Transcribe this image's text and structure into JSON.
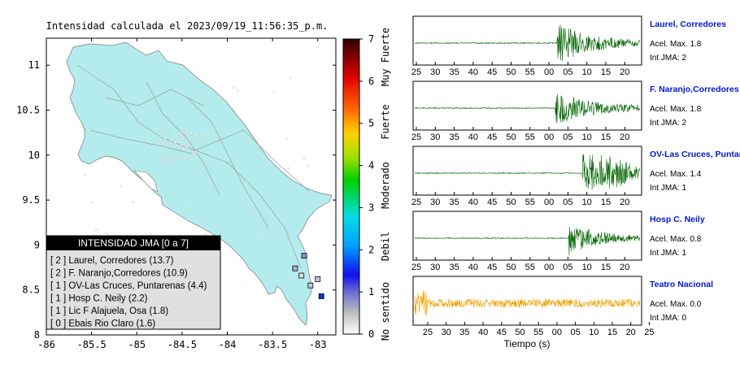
{
  "map": {
    "title": "Intensidad calculada el 2023/09/19_11:56:35_p.m.",
    "x_ticks": [
      "-86",
      "-85.5",
      "-85",
      "-84.5",
      "-84",
      "-83.5",
      "-83"
    ],
    "y_ticks": [
      "11",
      "10.5",
      "10",
      "9.5",
      "9",
      "8.5",
      "8"
    ],
    "xlim": [
      -86,
      -82.8
    ],
    "ylim": [
      8,
      11.3
    ]
  },
  "colorbar": {
    "ticks": [
      "0",
      "1",
      "2",
      "3",
      "4",
      "5",
      "6",
      "7"
    ],
    "labels": [
      "No sentido",
      "Debil",
      "Moderado",
      "Fuerte",
      "Muy Fuerte"
    ],
    "range": [
      0,
      7
    ]
  },
  "legend": {
    "title": "INTENSIDAD JMA [0 a 7]",
    "entries": [
      "[ 2 ]  Laurel, Corredores (13.7)",
      "[ 2 ]  F. Naranjo,Corredores (10.9)",
      "[ 1 ]  OV-Las Cruces, Puntarenas (4.4)",
      "[ 1 ]  Hosp C. Neily (2.2)",
      "[ 1 ]  Lic F Alajuela, Osa (1.8)",
      "[ 0 ]  Ebais Rio Claro (1.6)"
    ]
  },
  "stations": [
    {
      "lon": -82.96,
      "lat": 8.43,
      "intensity": 2,
      "color": "#1a2fc4"
    },
    {
      "lon": -83.08,
      "lat": 8.55,
      "intensity": 2,
      "color": "#c9c9e6"
    },
    {
      "lon": -83.15,
      "lat": 8.88,
      "intensity": 1,
      "color": "#8a8ad8"
    },
    {
      "lon": -83.25,
      "lat": 8.74,
      "intensity": 1,
      "color": "#b0b0e0"
    },
    {
      "lon": -83.0,
      "lat": 8.62,
      "intensity": 1,
      "color": "#c9c9e6"
    },
    {
      "lon": -83.18,
      "lat": 8.66,
      "intensity": 0,
      "color": "#dedede"
    }
  ],
  "waveforms": {
    "xlabel": "Tiempo (s)",
    "tick_labels_a": [
      "25",
      "30",
      "35",
      "40",
      "45",
      "50",
      "55",
      "00",
      "05",
      "10",
      "15",
      "20"
    ],
    "tick_labels_b": [
      "25",
      "30",
      "35",
      "40",
      "45",
      "50",
      "55",
      "00",
      "05",
      "10",
      "15",
      "20",
      "25"
    ],
    "traces": [
      {
        "name": "Laurel, Corredores",
        "acel": "Acel. Max. 1.8",
        "int": "Int JMA: 2",
        "color": "#006400",
        "onset": 0.63,
        "amp": 0.9
      },
      {
        "name": "F. Naranjo,Corredores",
        "acel": "Acel. Max. 1.8",
        "int": "Int JMA: 2",
        "color": "#006400",
        "onset": 0.62,
        "amp": 0.8
      },
      {
        "name": "OV-Las Cruces, Puntar",
        "acel": "Acel. Max. 1.4",
        "int": "Int JMA: 1",
        "color": "#006400",
        "onset": 0.74,
        "amp": 0.85
      },
      {
        "name": "Hosp C. Neily",
        "acel": "Acel. Max. 0.8",
        "int": "Int JMA: 1",
        "color": "#006400",
        "onset": 0.68,
        "amp": 0.75
      },
      {
        "name": "Teatro Nacional",
        "acel": "Acel. Max. 0.0",
        "int": "Int JMA: 0",
        "color": "#f0a000",
        "onset": 0.0,
        "amp": 0.5
      }
    ]
  }
}
